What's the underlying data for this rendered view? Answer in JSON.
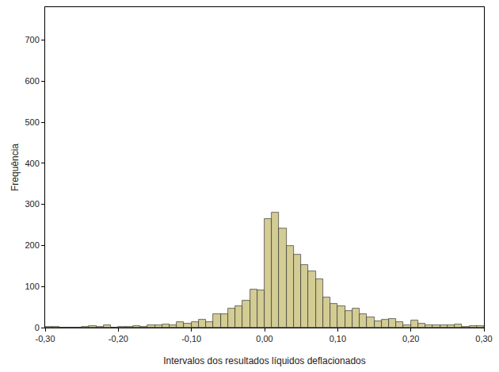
{
  "chart_data": {
    "type": "histogram",
    "x_label": "Intervalos dos resultados líquidos deflacionados",
    "y_label": "Frequência",
    "bins": [
      -0.3,
      -0.29,
      -0.28,
      -0.27,
      -0.26,
      -0.25,
      -0.24,
      -0.23,
      -0.22,
      -0.21,
      -0.2,
      -0.19,
      -0.18,
      -0.17,
      -0.16,
      -0.15,
      -0.14,
      -0.13,
      -0.12,
      -0.11,
      -0.1,
      -0.09,
      -0.08,
      -0.07,
      -0.06,
      -0.05,
      -0.04,
      -0.03,
      -0.02,
      -0.01,
      0,
      0.01,
      0.02,
      0.03,
      0.04,
      0.05,
      0.06,
      0.07,
      0.08,
      0.09,
      0.1,
      0.11,
      0.12,
      0.13,
      0.14,
      0.15,
      0.16,
      0.17,
      0.18,
      0.19,
      0.2,
      0.21,
      0.22,
      0.23,
      0.24,
      0.25,
      0.26,
      0.27,
      0.28,
      0.29,
      0.3
    ],
    "values": [
      2,
      1,
      0,
      0,
      0,
      1,
      3,
      1,
      5,
      0,
      1,
      2,
      4,
      2,
      6,
      5,
      8,
      6,
      13,
      10,
      13,
      20,
      13,
      32,
      33,
      47,
      53,
      66,
      93,
      90,
      265,
      280,
      241,
      198,
      178,
      153,
      138,
      118,
      73,
      57,
      53,
      40,
      47,
      32,
      26,
      16,
      19,
      22,
      14,
      5,
      17,
      9,
      5,
      6,
      6,
      5,
      8,
      2,
      3,
      3
    ],
    "color": "#d3cd94",
    "xlim": [
      -0.3,
      0.3
    ],
    "xticks": [
      {
        "value": -0.3,
        "label": "-0,30"
      },
      {
        "value": -0.2,
        "label": "-0,20"
      },
      {
        "value": -0.1,
        "label": "-0,10"
      },
      {
        "value": 0,
        "label": "0,00"
      },
      {
        "value": 0.1,
        "label": "0,10"
      },
      {
        "value": 0.2,
        "label": "0,20"
      },
      {
        "value": 0.3,
        "label": "0,30"
      }
    ],
    "ylim": [
      0,
      780
    ],
    "yticks": [
      0,
      100,
      200,
      300,
      400,
      500,
      600,
      700
    ],
    "grid": false
  }
}
